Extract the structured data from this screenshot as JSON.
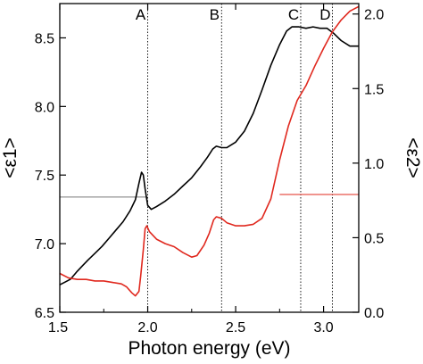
{
  "chart_data": {
    "type": "line",
    "xlabel": "Photon energy (eV)",
    "ylabel_left": "<ε1>",
    "ylabel_right": "<ε2>",
    "xlim": [
      1.5,
      3.2
    ],
    "ylim_left": [
      6.5,
      8.75
    ],
    "ylim_right": [
      0.0,
      2.07
    ],
    "x_ticks": [
      1.5,
      2.0,
      2.5,
      3.0
    ],
    "x_tick_labels": [
      "1.5",
      "2.0",
      "2.5",
      "3.0"
    ],
    "y_left_ticks": [
      6.5,
      7.0,
      7.5,
      8.0,
      8.5
    ],
    "y_left_tick_labels": [
      "6.5",
      "7.0",
      "7.5",
      "8.0",
      "8.5"
    ],
    "y_right_ticks": [
      0.0,
      0.5,
      1.0,
      1.5,
      2.0
    ],
    "y_right_tick_labels": [
      "0.0",
      "0.5",
      "1.0",
      "1.5",
      "2.0"
    ],
    "markers": [
      {
        "label": "A",
        "x": 2.0
      },
      {
        "label": "B",
        "x": 2.42
      },
      {
        "label": "C",
        "x": 2.87
      },
      {
        "label": "D",
        "x": 3.05
      }
    ],
    "series": [
      {
        "axis": "left",
        "color": "#000000",
        "points": [
          [
            1.5,
            6.7
          ],
          [
            1.53,
            6.72
          ],
          [
            1.56,
            6.74
          ],
          [
            1.58,
            6.77
          ],
          [
            1.6,
            6.8
          ],
          [
            1.63,
            6.84
          ],
          [
            1.66,
            6.88
          ],
          [
            1.7,
            6.93
          ],
          [
            1.74,
            6.98
          ],
          [
            1.78,
            7.04
          ],
          [
            1.82,
            7.1
          ],
          [
            1.86,
            7.16
          ],
          [
            1.9,
            7.24
          ],
          [
            1.93,
            7.32
          ],
          [
            1.95,
            7.44
          ],
          [
            1.965,
            7.52
          ],
          [
            1.975,
            7.5
          ],
          [
            1.985,
            7.4
          ],
          [
            2.0,
            7.28
          ],
          [
            2.02,
            7.25
          ],
          [
            2.05,
            7.27
          ],
          [
            2.1,
            7.31
          ],
          [
            2.15,
            7.36
          ],
          [
            2.2,
            7.42
          ],
          [
            2.25,
            7.48
          ],
          [
            2.3,
            7.56
          ],
          [
            2.34,
            7.63
          ],
          [
            2.37,
            7.69
          ],
          [
            2.39,
            7.71
          ],
          [
            2.42,
            7.7
          ],
          [
            2.45,
            7.7
          ],
          [
            2.5,
            7.74
          ],
          [
            2.55,
            7.82
          ],
          [
            2.6,
            7.95
          ],
          [
            2.65,
            8.12
          ],
          [
            2.7,
            8.3
          ],
          [
            2.75,
            8.45
          ],
          [
            2.79,
            8.55
          ],
          [
            2.82,
            8.58
          ],
          [
            2.86,
            8.58
          ],
          [
            2.9,
            8.57
          ],
          [
            2.94,
            8.58
          ],
          [
            2.98,
            8.57
          ],
          [
            3.02,
            8.57
          ],
          [
            3.06,
            8.53
          ],
          [
            3.1,
            8.48
          ],
          [
            3.15,
            8.44
          ],
          [
            3.2,
            8.44
          ]
        ]
      },
      {
        "axis": "right",
        "color": "#e0281e",
        "points": [
          [
            1.5,
            0.26
          ],
          [
            1.55,
            0.23
          ],
          [
            1.6,
            0.22
          ],
          [
            1.65,
            0.22
          ],
          [
            1.7,
            0.21
          ],
          [
            1.75,
            0.21
          ],
          [
            1.8,
            0.2
          ],
          [
            1.85,
            0.19
          ],
          [
            1.88,
            0.17
          ],
          [
            1.91,
            0.13
          ],
          [
            1.93,
            0.11
          ],
          [
            1.95,
            0.14
          ],
          [
            1.96,
            0.24
          ],
          [
            1.975,
            0.42
          ],
          [
            1.985,
            0.56
          ],
          [
            1.995,
            0.58
          ],
          [
            2.01,
            0.54
          ],
          [
            2.05,
            0.49
          ],
          [
            2.1,
            0.46
          ],
          [
            2.15,
            0.44
          ],
          [
            2.2,
            0.4
          ],
          [
            2.25,
            0.37
          ],
          [
            2.28,
            0.38
          ],
          [
            2.32,
            0.45
          ],
          [
            2.35,
            0.53
          ],
          [
            2.375,
            0.62
          ],
          [
            2.39,
            0.64
          ],
          [
            2.42,
            0.63
          ],
          [
            2.45,
            0.6
          ],
          [
            2.5,
            0.58
          ],
          [
            2.55,
            0.58
          ],
          [
            2.6,
            0.59
          ],
          [
            2.65,
            0.63
          ],
          [
            2.7,
            0.76
          ],
          [
            2.75,
            1.02
          ],
          [
            2.8,
            1.25
          ],
          [
            2.85,
            1.42
          ],
          [
            2.9,
            1.52
          ],
          [
            2.95,
            1.65
          ],
          [
            3.0,
            1.77
          ],
          [
            3.05,
            1.88
          ],
          [
            3.1,
            1.96
          ],
          [
            3.15,
            2.02
          ],
          [
            3.2,
            2.05
          ]
        ]
      }
    ],
    "reference_lines": [
      {
        "axis": "left",
        "y": 7.34,
        "x_from": 1.5,
        "x_to": 2.0,
        "color": "#777777"
      },
      {
        "axis": "right",
        "y": 0.79,
        "x_from": 2.75,
        "x_to": 3.2,
        "color": "#e0281e"
      }
    ]
  }
}
